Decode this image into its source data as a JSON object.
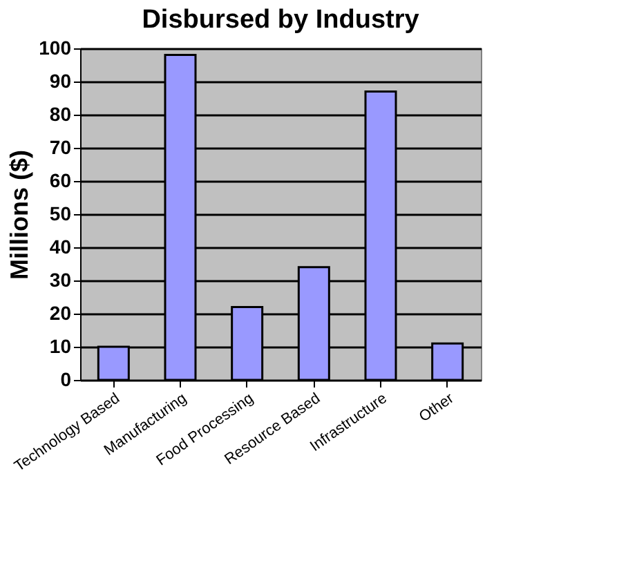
{
  "chart_data": {
    "type": "bar",
    "title": "Disbursed by Industry",
    "ylabel": "Millions ($)",
    "categories": [
      "Technology Based",
      "Manufacturing",
      "Food Processing",
      "Resource Based",
      "Infrastructure",
      "Other"
    ],
    "values": [
      10,
      98,
      22,
      34,
      87,
      11
    ],
    "color": "#9999ff",
    "ylim": [
      0,
      100
    ],
    "yticks": [
      0,
      10,
      20,
      30,
      40,
      50,
      60,
      70,
      80,
      90,
      100
    ],
    "grid": "y"
  }
}
